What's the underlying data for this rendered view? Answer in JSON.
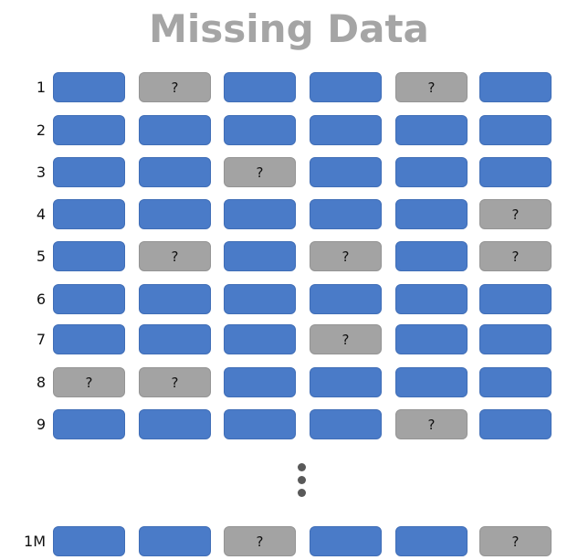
{
  "title": "Missing Data",
  "missing_marker": "?",
  "colors": {
    "present": "#4a7bc8",
    "missing": "#a3a3a3",
    "title": "#a5a5a5"
  },
  "rows": [
    {
      "label": "1",
      "cells": [
        "present",
        "missing",
        "present",
        "present",
        "missing",
        "present"
      ]
    },
    {
      "label": "2",
      "cells": [
        "present",
        "present",
        "present",
        "present",
        "present",
        "present"
      ]
    },
    {
      "label": "3",
      "cells": [
        "present",
        "present",
        "missing",
        "present",
        "present",
        "present"
      ]
    },
    {
      "label": "4",
      "cells": [
        "present",
        "present",
        "present",
        "present",
        "present",
        "missing"
      ]
    },
    {
      "label": "5",
      "cells": [
        "present",
        "missing",
        "present",
        "missing",
        "present",
        "missing"
      ]
    },
    {
      "label": "6",
      "cells": [
        "present",
        "present",
        "present",
        "present",
        "present",
        "present"
      ]
    },
    {
      "label": "7",
      "cells": [
        "present",
        "present",
        "present",
        "missing",
        "present",
        "present"
      ]
    },
    {
      "label": "8",
      "cells": [
        "missing",
        "missing",
        "present",
        "present",
        "present",
        "present"
      ]
    },
    {
      "label": "9",
      "cells": [
        "present",
        "present",
        "present",
        "present",
        "missing",
        "present"
      ]
    },
    {
      "label": "1M",
      "cells": [
        "present",
        "present",
        "missing",
        "present",
        "present",
        "missing"
      ]
    }
  ]
}
